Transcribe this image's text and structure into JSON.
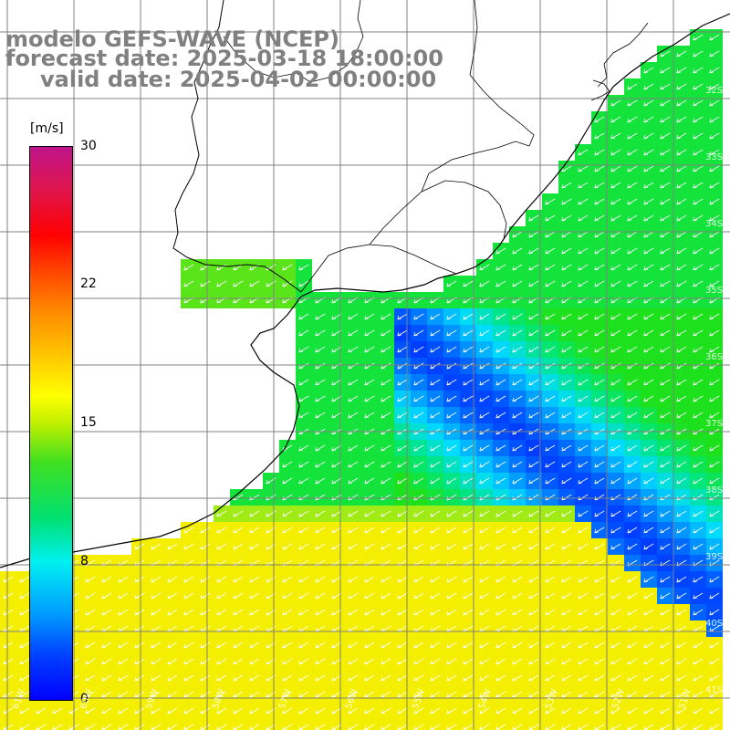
{
  "header": {
    "model": "modelo GEFS-WAVE (NCEP)",
    "forecast": "forecast date: 2025-03-18 18:00:00",
    "valid": "valid date: 2025-04-02 00:00:00"
  },
  "colorbar": {
    "unit": "[m/s]",
    "ticks": [
      "30",
      "22",
      "15",
      "8",
      "0"
    ],
    "tick_values": [
      30,
      22,
      15,
      8,
      0
    ],
    "colors": [
      "#c0148c",
      "#ff0000",
      "#ff8c00",
      "#ffff00",
      "#00e000",
      "#00f0f0",
      "#0000ff"
    ]
  },
  "grid": {
    "lat_labels": [
      "32S",
      "33S",
      "34S",
      "35S",
      "36S",
      "37S",
      "38S",
      "39S",
      "40S",
      "41S"
    ],
    "lon_labels": [
      "61W",
      "60W",
      "59W",
      "58W",
      "57W",
      "56W",
      "55W",
      "54W",
      "53W",
      "52W",
      "51W"
    ]
  },
  "colors": {
    "land": "#ffffff",
    "coast": "#000000",
    "grid": "#808080",
    "arrows": "#ffffff"
  }
}
